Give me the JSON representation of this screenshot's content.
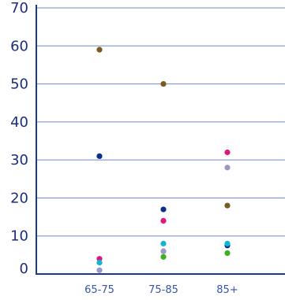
{
  "chart_data": {
    "type": "scatter",
    "categories": [
      "65-75",
      "75-85",
      "85+"
    ],
    "ylim": [
      0,
      70
    ],
    "y_ticks": [
      0,
      10,
      20,
      30,
      40,
      50,
      60,
      70
    ],
    "grid": "horizontal",
    "series": [
      {
        "color": "#7B5A22",
        "values": [
          59,
          50,
          18
        ]
      },
      {
        "color": "#0B2F8A",
        "values": [
          31,
          17,
          7.5
        ]
      },
      {
        "color": "#E0187D",
        "values": [
          4,
          14,
          32
        ]
      },
      {
        "color": "#12B5D0",
        "values": [
          3,
          8,
          8
        ]
      },
      {
        "color": "#9A96C8",
        "values": [
          1,
          6,
          28
        ]
      },
      {
        "color": "#3FAE1F",
        "values": [
          null,
          4.5,
          5.5
        ]
      }
    ]
  },
  "colors": {
    "axis": "#1a3a8a",
    "grid": "#6f88c6",
    "tick_label_y": "#1b2f78",
    "tick_label_x": "#3656a8"
  }
}
